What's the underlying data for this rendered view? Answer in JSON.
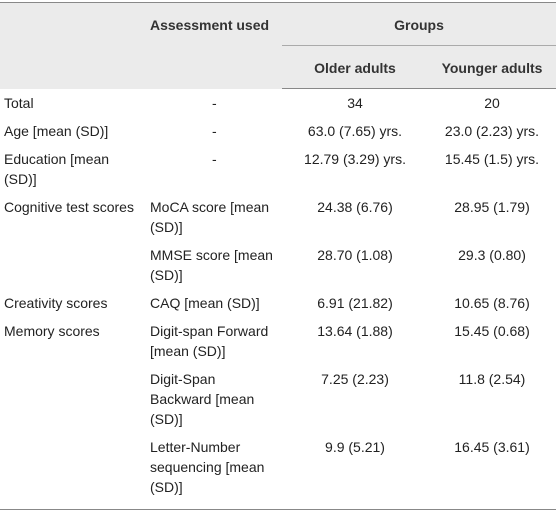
{
  "header": {
    "assessment": "Assessment used",
    "groups": "Groups",
    "older": "Older adults",
    "younger": "Younger adults"
  },
  "sections": [
    {
      "label": "Total",
      "items": [
        {
          "assessment": "-",
          "older": "34",
          "younger": "20"
        }
      ]
    },
    {
      "label": "Age [mean (SD)]",
      "items": [
        {
          "assessment": "-",
          "older": "63.0 (7.65) yrs.",
          "younger": "23.0 (2.23) yrs."
        }
      ]
    },
    {
      "label": "Education [mean (SD)]",
      "items": [
        {
          "assessment": "-",
          "older": "12.79 (3.29) yrs.",
          "younger": "15.45 (1.5) yrs."
        }
      ]
    },
    {
      "label": "Cognitive test scores",
      "items": [
        {
          "assessment": "MoCA score [mean (SD)]",
          "older": "24.38 (6.76)",
          "younger": "28.95 (1.79)"
        },
        {
          "assessment": "MMSE score [mean (SD)]",
          "older": "28.70 (1.08)",
          "younger": "29.3 (0.80)"
        }
      ]
    },
    {
      "label": "Creativity scores",
      "items": [
        {
          "assessment": "CAQ [mean (SD)]",
          "older": "6.91 (21.82)",
          "younger": "10.65 (8.76)"
        }
      ]
    },
    {
      "label": "Memory scores",
      "items": [
        {
          "assessment": "Digit-span Forward [mean (SD)]",
          "older": "13.64 (1.88)",
          "younger": "15.45 (0.68)"
        },
        {
          "assessment": "Digit-Span Backward [mean (SD)]",
          "older": "7.25 (2.23)",
          "younger": "11.8 (2.54)"
        },
        {
          "assessment": "Letter-Number sequencing [mean (SD)]",
          "older": "9.9 (5.21)",
          "younger": "16.45 (3.61)"
        }
      ]
    }
  ]
}
